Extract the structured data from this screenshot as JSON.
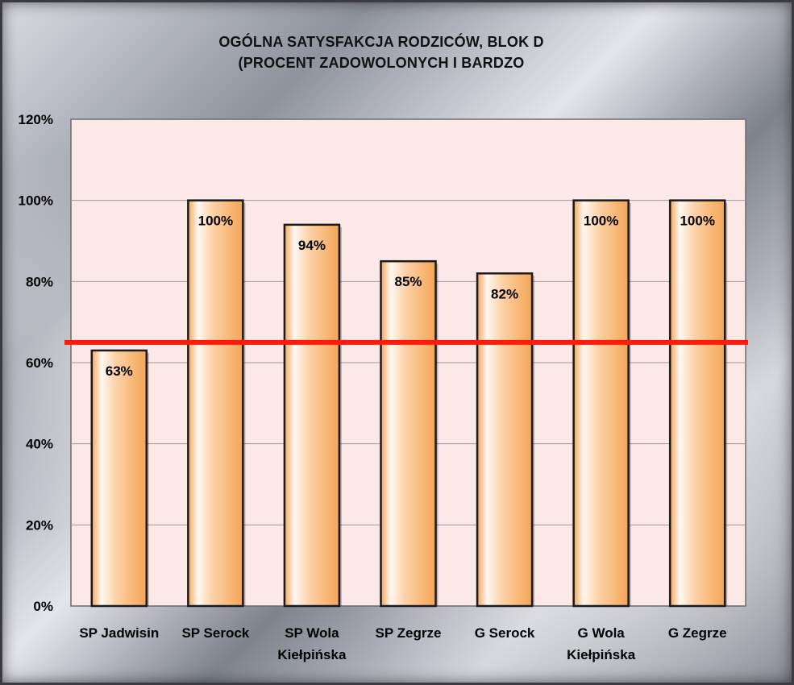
{
  "chart_data": {
    "type": "bar",
    "title_lines": [
      "OGÓLNA SATYSFAKCJA RODZICÓW, BLOK D",
      "(PROCENT ZADOWOLONYCH I BARDZO"
    ],
    "categories": [
      [
        "SP Jadwisin"
      ],
      [
        "SP Serock"
      ],
      [
        "SP Wola",
        "Kiełpińska"
      ],
      [
        "SP Zegrze"
      ],
      [
        "G Serock"
      ],
      [
        "G Wola",
        "Kiełpińska"
      ],
      [
        "G Zegrze"
      ]
    ],
    "values": [
      63,
      100,
      94,
      85,
      82,
      100,
      100
    ],
    "data_labels": [
      "63%",
      "100%",
      "94%",
      "85%",
      "82%",
      "100%",
      "100%"
    ],
    "yticks": [
      "0%",
      "20%",
      "40%",
      "60%",
      "80%",
      "100%",
      "120%"
    ],
    "ylim": [
      0,
      120
    ],
    "reference_line": 65,
    "colors": {
      "plot_background": "#fde8e8",
      "bar_light": "#fffaf4",
      "bar_dark": "#f4a75a",
      "reference_line": "#ff1a0a"
    },
    "grid": true
  }
}
